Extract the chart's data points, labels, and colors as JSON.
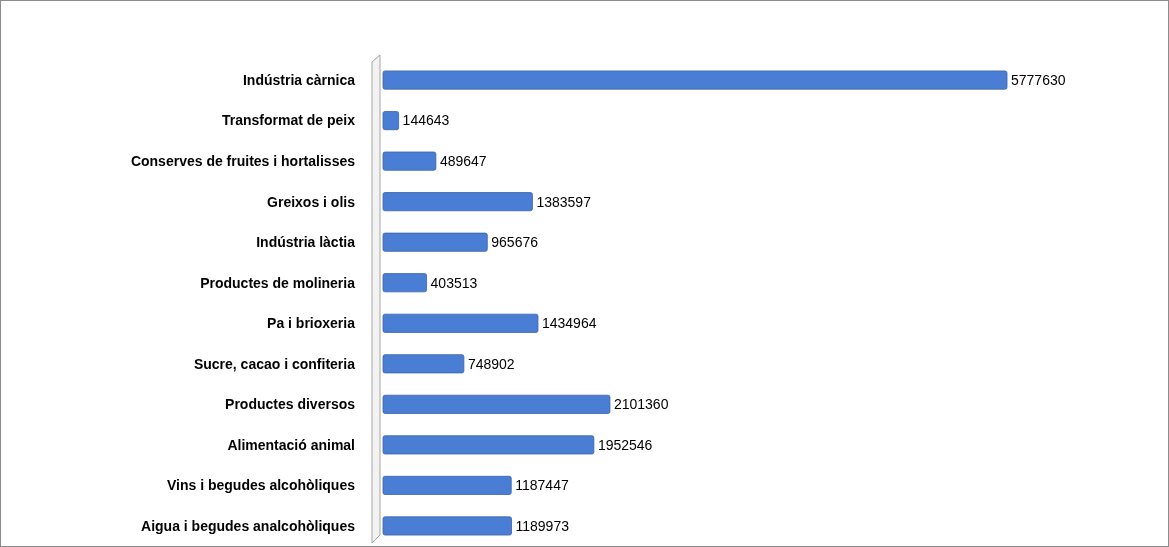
{
  "chart_data": {
    "type": "bar",
    "orientation": "horizontal",
    "categories": [
      "Indústria càrnica",
      "Transformat de peix",
      "Conserves de fruites i hortalisses",
      "Greixos i olis",
      "Indústria làctia",
      "Productes de molineria",
      "Pa i brioxeria",
      "Sucre, cacao  i confiteria",
      "Productes diversos",
      "Alimentació animal",
      "Vins i begudes alcohòliques",
      "Aigua i begudes analcohòliques"
    ],
    "values": [
      5777630,
      144643,
      489647,
      1383597,
      965676,
      403513,
      1434964,
      748902,
      2101360,
      1952546,
      1187447,
      1189973
    ],
    "color": "#4a7ed4",
    "data_labels": true
  }
}
